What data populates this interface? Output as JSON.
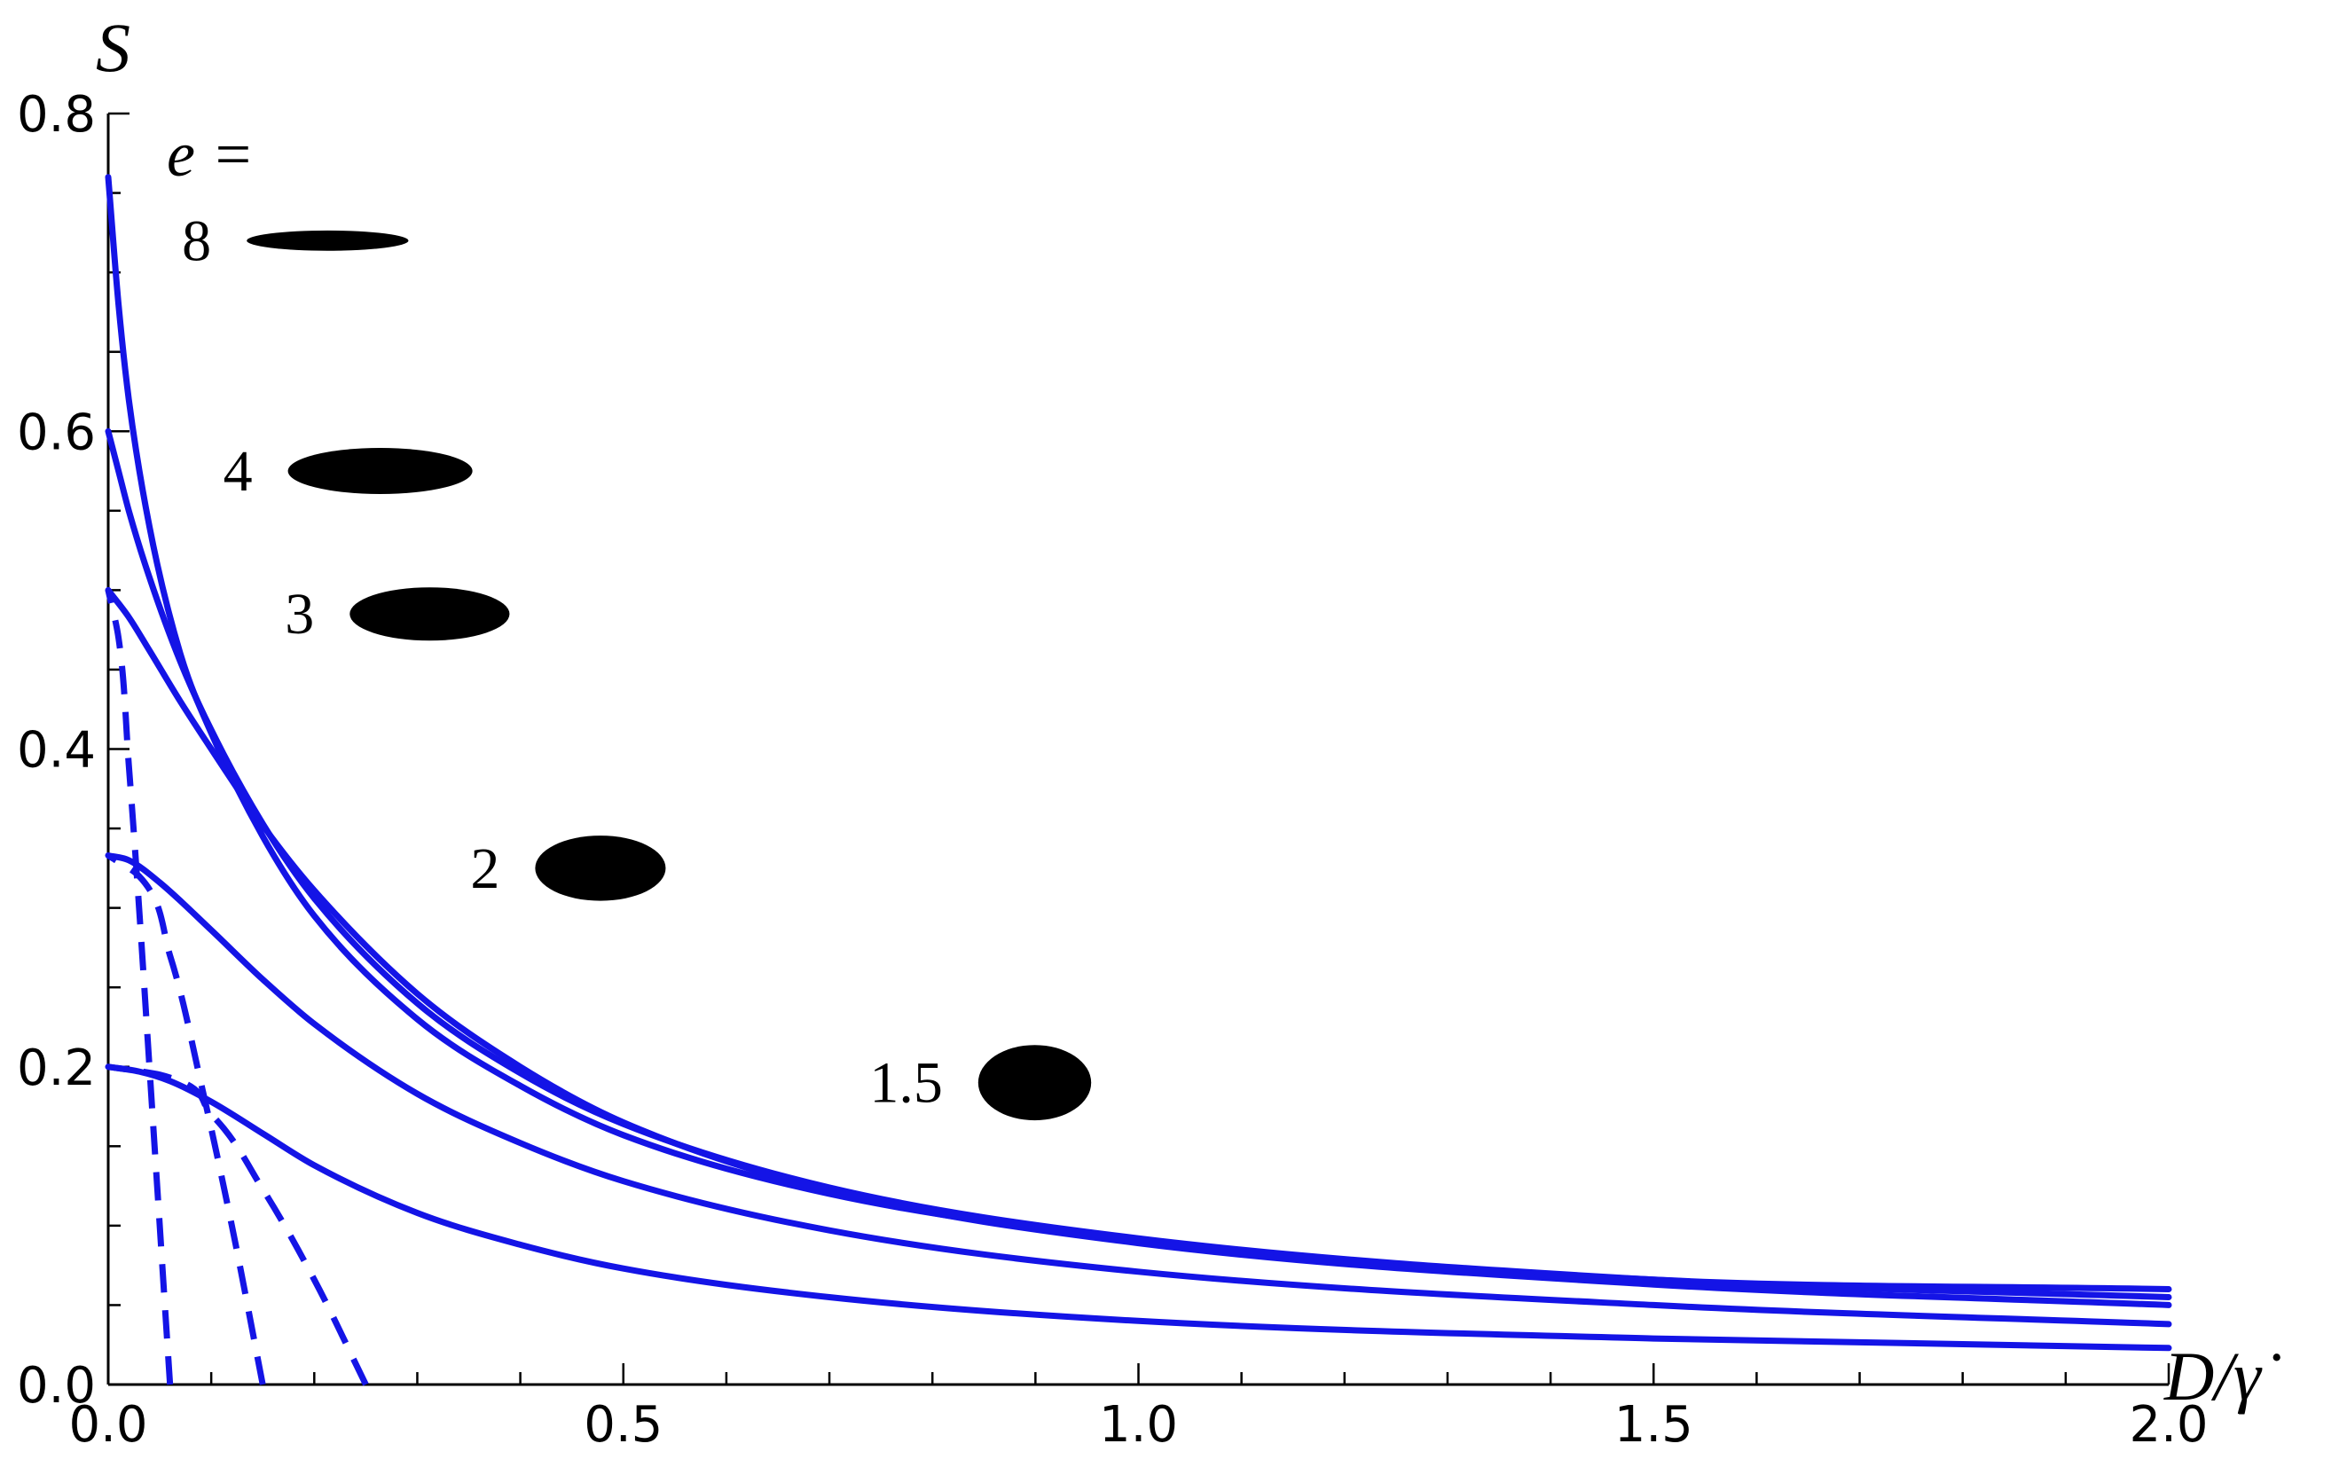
{
  "chart_data": {
    "type": "line",
    "xlabel": "D/γ̇",
    "ylabel": "S",
    "xlim": [
      0.0,
      2.0
    ],
    "ylim": [
      0.0,
      0.8
    ],
    "x_ticks": [
      "0.0",
      "0.5",
      "1.0",
      "1.5",
      "2.0"
    ],
    "y_ticks": [
      "0.0",
      "0.2",
      "0.4",
      "0.6",
      "0.8"
    ],
    "grid": false,
    "legend_title": "e =",
    "series": [
      {
        "name": "8",
        "style": "solid",
        "x": [
          0.0,
          0.01,
          0.02,
          0.04,
          0.07,
          0.1,
          0.15,
          0.2,
          0.3,
          0.4,
          0.5,
          0.7,
          1.0,
          1.5,
          2.0
        ],
        "y": [
          0.76,
          0.68,
          0.62,
          0.54,
          0.46,
          0.41,
          0.345,
          0.295,
          0.23,
          0.188,
          0.157,
          0.12,
          0.091,
          0.066,
          0.06
        ]
      },
      {
        "name": "4",
        "style": "solid",
        "x": [
          0.0,
          0.01,
          0.02,
          0.04,
          0.07,
          0.1,
          0.15,
          0.2,
          0.3,
          0.4,
          0.5,
          0.7,
          1.0,
          1.5,
          2.0
        ],
        "y": [
          0.6,
          0.575,
          0.55,
          0.508,
          0.455,
          0.412,
          0.353,
          0.306,
          0.24,
          0.196,
          0.164,
          0.124,
          0.092,
          0.066,
          0.055
        ]
      },
      {
        "name": "3",
        "style": "solid",
        "x": [
          0.0,
          0.02,
          0.04,
          0.07,
          0.1,
          0.15,
          0.2,
          0.3,
          0.4,
          0.5,
          0.7,
          1.0,
          1.5,
          2.0
        ],
        "y": [
          0.5,
          0.483,
          0.462,
          0.43,
          0.4,
          0.352,
          0.311,
          0.246,
          0.2,
          0.165,
          0.122,
          0.089,
          0.063,
          0.05
        ]
      },
      {
        "name": "2",
        "style": "solid",
        "x": [
          0.0,
          0.02,
          0.05,
          0.1,
          0.15,
          0.2,
          0.3,
          0.4,
          0.5,
          0.7,
          1.0,
          1.5,
          2.0
        ],
        "y": [
          0.333,
          0.33,
          0.316,
          0.286,
          0.255,
          0.227,
          0.183,
          0.152,
          0.128,
          0.097,
          0.071,
          0.05,
          0.038
        ]
      },
      {
        "name": "1.5",
        "style": "solid",
        "x": [
          0.0,
          0.03,
          0.06,
          0.1,
          0.15,
          0.2,
          0.3,
          0.4,
          0.5,
          0.7,
          1.0,
          1.5,
          2.0
        ],
        "y": [
          0.2,
          0.197,
          0.191,
          0.178,
          0.158,
          0.138,
          0.108,
          0.088,
          0.073,
          0.055,
          0.04,
          0.029,
          0.023
        ]
      },
      {
        "name": "",
        "style": "dashed",
        "x": [
          0.0,
          0.01,
          0.02,
          0.03,
          0.04,
          0.05,
          0.06
        ],
        "y": [
          0.5,
          0.47,
          0.39,
          0.3,
          0.2,
          0.1,
          0.0
        ]
      },
      {
        "name": "",
        "style": "dashed",
        "x": [
          0.0,
          0.03,
          0.06,
          0.09,
          0.12,
          0.15
        ],
        "y": [
          0.333,
          0.32,
          0.27,
          0.19,
          0.1,
          0.0
        ]
      },
      {
        "name": "",
        "style": "dashed",
        "x": [
          0.0,
          0.05,
          0.1,
          0.15,
          0.2,
          0.25
        ],
        "y": [
          0.2,
          0.195,
          0.17,
          0.123,
          0.066,
          0.0
        ]
      }
    ],
    "shape_labels": [
      {
        "label": "8",
        "x": 0.1,
        "y": 0.72,
        "aspect": 8
      },
      {
        "label": "4",
        "x": 0.14,
        "y": 0.575,
        "aspect": 4
      },
      {
        "label": "3",
        "x": 0.2,
        "y": 0.485,
        "aspect": 3
      },
      {
        "label": "2",
        "x": 0.38,
        "y": 0.325,
        "aspect": 2
      },
      {
        "label": "1.5",
        "x": 0.81,
        "y": 0.19,
        "aspect": 1.5
      }
    ],
    "colors": {
      "curves": "#1414e6",
      "axes": "#000000",
      "shapes": "#000000"
    }
  }
}
